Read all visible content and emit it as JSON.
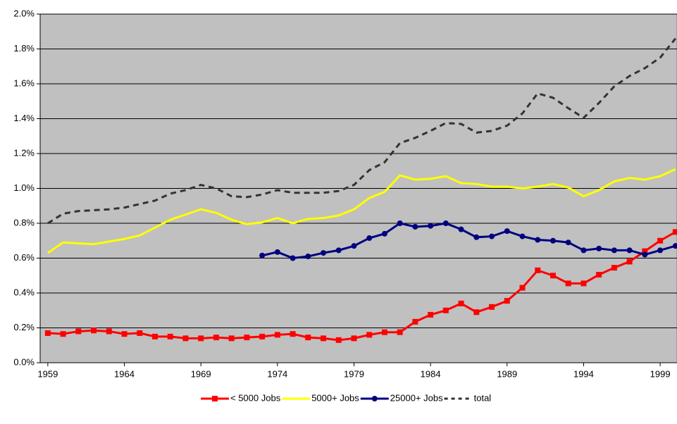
{
  "chart_data": {
    "type": "line",
    "x": [
      1959,
      1960,
      1961,
      1962,
      1963,
      1964,
      1965,
      1966,
      1967,
      1968,
      1969,
      1970,
      1971,
      1972,
      1973,
      1974,
      1975,
      1976,
      1977,
      1978,
      1979,
      1980,
      1981,
      1982,
      1983,
      1984,
      1985,
      1986,
      1987,
      1988,
      1989,
      1990,
      1991,
      1992,
      1993,
      1994,
      1995,
      1996,
      1997,
      1998,
      1999,
      2000
    ],
    "xlim": [
      1958.5,
      2000.1
    ],
    "xticks": [
      1959,
      1964,
      1969,
      1974,
      1979,
      1984,
      1989,
      1994,
      1999
    ],
    "ylim": [
      0,
      2.0
    ],
    "yticks": [
      {
        "value": 0,
        "label": "0.0%"
      },
      {
        "value": 0.2,
        "label": "0.2%"
      },
      {
        "value": 0.4,
        "label": "0.4%"
      },
      {
        "value": 0.6,
        "label": "0.6%"
      },
      {
        "value": 0.8,
        "label": "0.8%"
      },
      {
        "value": 1.0,
        "label": "1.0%"
      },
      {
        "value": 1.2,
        "label": "1.2%"
      },
      {
        "value": 1.4,
        "label": "1.4%"
      },
      {
        "value": 1.6,
        "label": "1.6%"
      },
      {
        "value": 1.8,
        "label": "1.8%"
      },
      {
        "value": 2.0,
        "label": "2.0%"
      }
    ],
    "grid": true,
    "legend": "bottom",
    "series": [
      {
        "name": "< 5000 Jobs",
        "color": "#ff0000",
        "marker": "square",
        "values": [
          0.17,
          0.165,
          0.18,
          0.185,
          0.18,
          0.165,
          0.17,
          0.15,
          0.15,
          0.14,
          0.14,
          0.145,
          0.14,
          0.145,
          0.15,
          0.16,
          0.165,
          0.145,
          0.14,
          0.13,
          0.14,
          0.16,
          0.175,
          0.175,
          0.235,
          0.275,
          0.3,
          0.34,
          0.29,
          0.32,
          0.355,
          0.43,
          0.53,
          0.5,
          0.455,
          0.455,
          0.505,
          0.545,
          0.58,
          0.64,
          0.7,
          0.75
        ]
      },
      {
        "name": "5000+ Jobs",
        "color": "#ffff00",
        "values": [
          0.63,
          0.69,
          0.685,
          0.68,
          0.695,
          0.71,
          0.73,
          0.775,
          0.82,
          0.85,
          0.88,
          0.86,
          0.82,
          0.795,
          0.805,
          0.83,
          0.8,
          0.825,
          0.83,
          0.845,
          0.88,
          0.945,
          0.98,
          1.075,
          1.05,
          1.055,
          1.07,
          1.03,
          1.025,
          1.01,
          1.01,
          1.0,
          1.01,
          1.025,
          1.005,
          0.955,
          0.99,
          1.04,
          1.06,
          1.05,
          1.07,
          1.11
        ]
      },
      {
        "name": "25000+ Jobs",
        "color": "#000080",
        "marker": "circle",
        "values": [
          null,
          null,
          null,
          null,
          null,
          null,
          null,
          null,
          null,
          null,
          null,
          null,
          null,
          null,
          0.615,
          0.635,
          0.6,
          0.61,
          0.63,
          0.645,
          0.67,
          0.715,
          0.74,
          0.8,
          0.78,
          0.785,
          0.8,
          0.765,
          0.72,
          0.725,
          0.755,
          0.725,
          0.705,
          0.7,
          0.69,
          0.645,
          0.655,
          0.645,
          0.645,
          0.62,
          0.645,
          0.67
        ]
      },
      {
        "name": "total",
        "color": "#333333",
        "dash": true,
        "values": [
          0.8,
          0.855,
          0.87,
          0.875,
          0.88,
          0.89,
          0.91,
          0.93,
          0.97,
          0.99,
          1.02,
          1.0,
          0.955,
          0.95,
          0.965,
          0.99,
          0.975,
          0.975,
          0.975,
          0.985,
          1.02,
          1.105,
          1.15,
          1.26,
          1.29,
          1.33,
          1.375,
          1.37,
          1.32,
          1.33,
          1.36,
          1.43,
          1.545,
          1.52,
          1.46,
          1.405,
          1.49,
          1.585,
          1.645,
          1.69,
          1.75,
          1.86
        ]
      }
    ]
  }
}
